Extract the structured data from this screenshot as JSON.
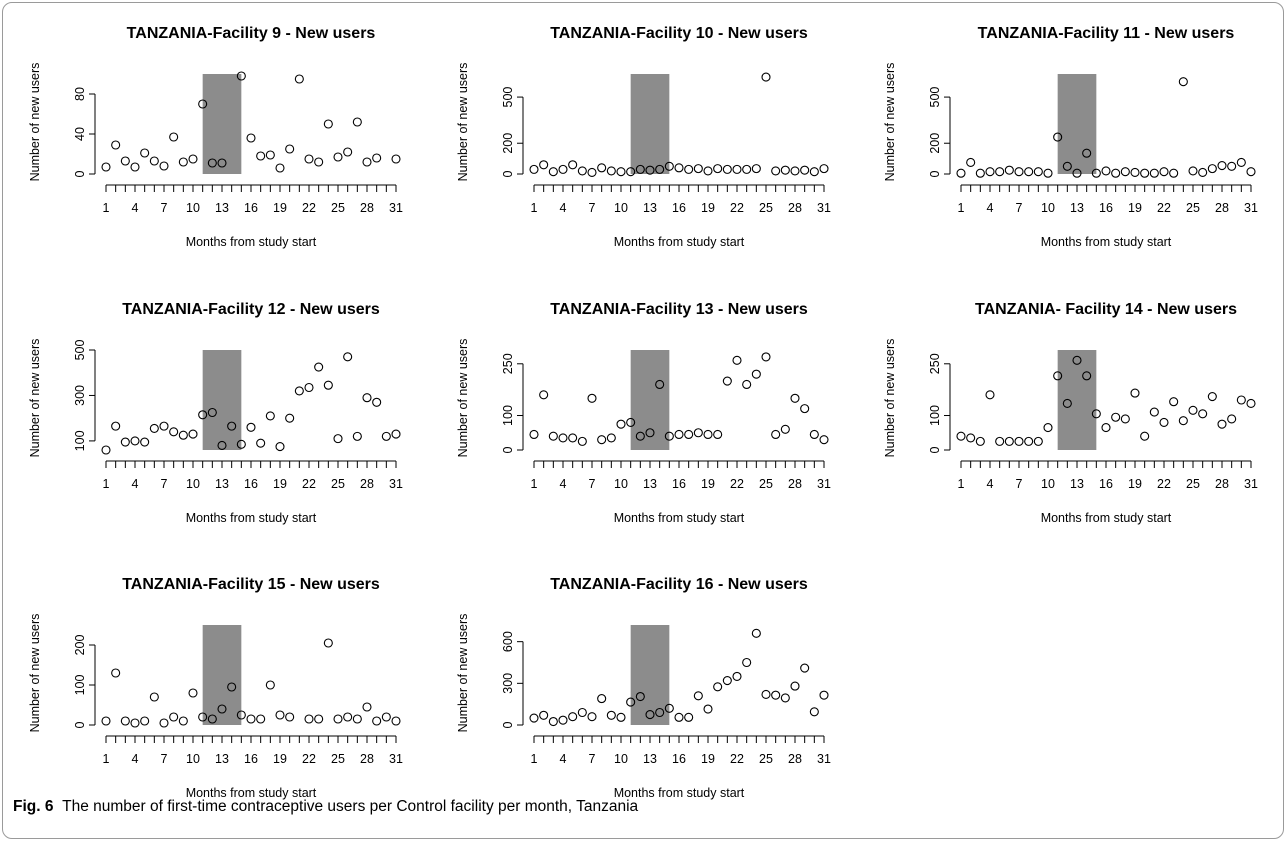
{
  "caption": {
    "label": "Fig. 6",
    "text": "The number of first-time contraceptive users per Control facility per month, Tanzania"
  },
  "colors": {
    "shade": "#8c8c8c",
    "axis": "#000000",
    "point": "#000000"
  },
  "chart_data": [
    {
      "type": "scatter",
      "title": "TANZANIA-Facility 9 - New users",
      "xlabel": "Months from study start",
      "ylabel": "Number of new users",
      "xlim": [
        1,
        31
      ],
      "ylim": [
        0,
        100
      ],
      "y_ticks": [
        0,
        40,
        80
      ],
      "x_ticks": [
        1,
        4,
        7,
        10,
        13,
        16,
        19,
        22,
        25,
        28,
        31
      ],
      "shaded_x": [
        11,
        15
      ],
      "x": [
        1,
        2,
        3,
        4,
        5,
        6,
        7,
        8,
        9,
        10,
        11,
        12,
        13,
        14,
        15,
        16,
        17,
        18,
        19,
        20,
        21,
        22,
        23,
        24,
        25,
        26,
        27,
        28,
        29,
        30,
        31
      ],
      "y": [
        7,
        29,
        13,
        7,
        21,
        13,
        8,
        37,
        12,
        15,
        70,
        11,
        11,
        null,
        98,
        36,
        18,
        19,
        6,
        25,
        95,
        15,
        12,
        50,
        17,
        22,
        52,
        12,
        16,
        null,
        15
      ]
    },
    {
      "type": "scatter",
      "title": "TANZANIA-Facility 10 - New users",
      "xlabel": "Months from study start",
      "ylabel": "Number of new users",
      "xlim": [
        1,
        31
      ],
      "ylim": [
        0,
        650
      ],
      "y_ticks": [
        0,
        200,
        500
      ],
      "x_ticks": [
        1,
        4,
        7,
        10,
        13,
        16,
        19,
        22,
        25,
        28,
        31
      ],
      "shaded_x": [
        11,
        15
      ],
      "x": [
        1,
        2,
        3,
        4,
        5,
        6,
        7,
        8,
        9,
        10,
        11,
        12,
        13,
        14,
        15,
        16,
        17,
        18,
        19,
        20,
        21,
        22,
        23,
        24,
        25,
        26,
        27,
        28,
        29,
        30,
        31
      ],
      "y": [
        30,
        60,
        15,
        30,
        60,
        20,
        10,
        40,
        20,
        15,
        15,
        30,
        25,
        30,
        50,
        40,
        30,
        35,
        20,
        35,
        30,
        30,
        30,
        35,
        630,
        20,
        25,
        20,
        25,
        15,
        35
      ]
    },
    {
      "type": "scatter",
      "title": "TANZANIA-Facility 11 - New users",
      "xlabel": "Months from study start",
      "ylabel": "Number of new users",
      "xlim": [
        1,
        31
      ],
      "ylim": [
        0,
        650
      ],
      "y_ticks": [
        0,
        200,
        500
      ],
      "x_ticks": [
        1,
        4,
        7,
        10,
        13,
        16,
        19,
        22,
        25,
        28,
        31
      ],
      "shaded_x": [
        11,
        15
      ],
      "x": [
        1,
        2,
        3,
        4,
        5,
        6,
        7,
        8,
        9,
        10,
        11,
        12,
        13,
        14,
        15,
        16,
        17,
        18,
        19,
        20,
        21,
        22,
        23,
        24,
        25,
        26,
        27,
        28,
        29,
        30,
        31
      ],
      "y": [
        5,
        75,
        5,
        15,
        15,
        25,
        15,
        15,
        15,
        5,
        240,
        50,
        5,
        135,
        5,
        20,
        5,
        15,
        10,
        5,
        5,
        15,
        5,
        600,
        20,
        10,
        35,
        55,
        50,
        75,
        15
      ]
    },
    {
      "type": "scatter",
      "title": "TANZANIA-Facility 12 - New users",
      "xlabel": "Months from study start",
      "ylabel": "Number of new users",
      "xlim": [
        1,
        31
      ],
      "ylim": [
        60,
        500
      ],
      "y_ticks": [
        100,
        300,
        500
      ],
      "x_ticks": [
        1,
        4,
        7,
        10,
        13,
        16,
        19,
        22,
        25,
        28,
        31
      ],
      "shaded_x": [
        11,
        15
      ],
      "x": [
        1,
        2,
        3,
        4,
        5,
        6,
        7,
        8,
        9,
        10,
        11,
        12,
        13,
        14,
        15,
        16,
        17,
        18,
        19,
        20,
        21,
        22,
        23,
        24,
        25,
        26,
        27,
        28,
        29,
        30,
        31
      ],
      "y": [
        60,
        165,
        95,
        100,
        95,
        155,
        165,
        140,
        125,
        130,
        215,
        225,
        80,
        165,
        85,
        160,
        90,
        210,
        75,
        200,
        320,
        335,
        425,
        345,
        110,
        470,
        120,
        290,
        270,
        120,
        130
      ]
    },
    {
      "type": "scatter",
      "title": "TANZANIA-Facility 13 - New users",
      "xlabel": "Months from study start",
      "ylabel": "Number of new users",
      "xlim": [
        1,
        31
      ],
      "ylim": [
        0,
        290
      ],
      "y_ticks": [
        0,
        100,
        250
      ],
      "x_ticks": [
        1,
        4,
        7,
        10,
        13,
        16,
        19,
        22,
        25,
        28,
        31
      ],
      "shaded_x": [
        11,
        15
      ],
      "x": [
        1,
        2,
        3,
        4,
        5,
        6,
        7,
        8,
        9,
        10,
        11,
        12,
        13,
        14,
        15,
        16,
        17,
        18,
        19,
        20,
        21,
        22,
        23,
        24,
        25,
        26,
        27,
        28,
        29,
        30,
        31
      ],
      "y": [
        45,
        160,
        40,
        35,
        35,
        25,
        150,
        30,
        35,
        75,
        80,
        40,
        50,
        190,
        40,
        45,
        45,
        50,
        45,
        45,
        200,
        260,
        190,
        220,
        270,
        45,
        60,
        150,
        120,
        45,
        30
      ]
    },
    {
      "type": "scatter",
      "title": "TANZANIA- Facility 14 - New users",
      "xlabel": "Months from study start",
      "ylabel": "Number of new users",
      "xlim": [
        1,
        31
      ],
      "ylim": [
        0,
        290
      ],
      "y_ticks": [
        0,
        100,
        250
      ],
      "x_ticks": [
        1,
        4,
        7,
        10,
        13,
        16,
        19,
        22,
        25,
        28,
        31
      ],
      "shaded_x": [
        11,
        15
      ],
      "x": [
        1,
        2,
        3,
        4,
        5,
        6,
        7,
        8,
        9,
        10,
        11,
        12,
        13,
        14,
        15,
        16,
        17,
        18,
        19,
        20,
        21,
        22,
        23,
        24,
        25,
        26,
        27,
        28,
        29,
        30,
        31
      ],
      "y": [
        40,
        35,
        25,
        160,
        25,
        25,
        25,
        25,
        25,
        65,
        215,
        135,
        260,
        215,
        105,
        65,
        95,
        90,
        165,
        40,
        110,
        80,
        140,
        85,
        115,
        105,
        155,
        75,
        90,
        145,
        135
      ]
    },
    {
      "type": "scatter",
      "title": "TANZANIA-Facility 15 - New users",
      "xlabel": "Months from study start",
      "ylabel": "Number of new users",
      "xlim": [
        1,
        31
      ],
      "ylim": [
        0,
        250
      ],
      "y_ticks": [
        0,
        100,
        200
      ],
      "x_ticks": [
        1,
        4,
        7,
        10,
        13,
        16,
        19,
        22,
        25,
        28,
        31
      ],
      "shaded_x": [
        11,
        15
      ],
      "x": [
        1,
        2,
        3,
        4,
        5,
        6,
        7,
        8,
        9,
        10,
        11,
        12,
        13,
        14,
        15,
        16,
        17,
        18,
        19,
        20,
        21,
        22,
        23,
        24,
        25,
        26,
        27,
        28,
        29,
        30,
        31
      ],
      "y": [
        10,
        130,
        10,
        5,
        10,
        70,
        5,
        20,
        10,
        80,
        20,
        15,
        40,
        95,
        25,
        15,
        15,
        100,
        25,
        20,
        null,
        15,
        15,
        205,
        15,
        20,
        15,
        45,
        10,
        20,
        10
      ]
    },
    {
      "type": "scatter",
      "title": "TANZANIA-Facility 16 - New users",
      "xlabel": "Months from study start",
      "ylabel": "Number of new users",
      "xlim": [
        1,
        31
      ],
      "ylim": [
        0,
        720
      ],
      "y_ticks": [
        0,
        300,
        600
      ],
      "x_ticks": [
        1,
        4,
        7,
        10,
        13,
        16,
        19,
        22,
        25,
        28,
        31
      ],
      "shaded_x": [
        11,
        15
      ],
      "x": [
        1,
        2,
        3,
        4,
        5,
        6,
        7,
        8,
        9,
        10,
        11,
        12,
        13,
        14,
        15,
        16,
        17,
        18,
        19,
        20,
        21,
        22,
        23,
        24,
        25,
        26,
        27,
        28,
        29,
        30,
        31
      ],
      "y": [
        50,
        70,
        25,
        35,
        60,
        90,
        60,
        190,
        70,
        55,
        165,
        205,
        75,
        90,
        120,
        55,
        55,
        210,
        115,
        275,
        320,
        350,
        450,
        660,
        220,
        215,
        195,
        280,
        410,
        95,
        215
      ]
    }
  ]
}
